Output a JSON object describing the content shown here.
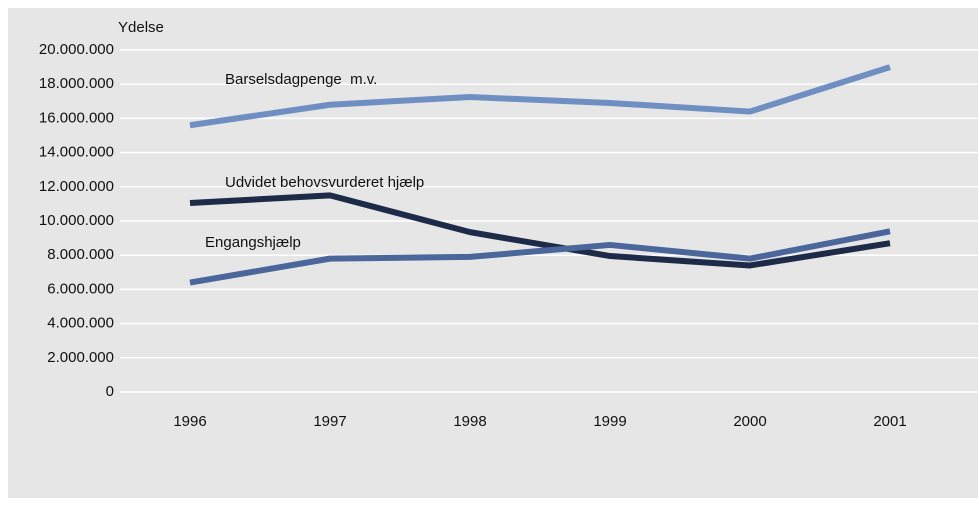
{
  "chart_data": {
    "type": "line",
    "y_label": "Ydelse",
    "categories": [
      "1996",
      "1997",
      "1998",
      "1999",
      "2000",
      "2001"
    ],
    "series": [
      {
        "name": "Barselsdagpenge  m.v.",
        "color": "#6f8fc2",
        "values": [
          15600000,
          16800000,
          17250000,
          16900000,
          16400000,
          19000000
        ]
      },
      {
        "name": "Udvidet behovsvurderet hjælp",
        "color": "#1e2b48",
        "values": [
          11050000,
          11500000,
          9350000,
          7950000,
          7400000,
          8700000
        ]
      },
      {
        "name": "Engangshjælp",
        "color": "#4a669a",
        "values": [
          6400000,
          7800000,
          7900000,
          8600000,
          7800000,
          9400000
        ]
      }
    ],
    "ylim": [
      0,
      20000000
    ],
    "yticks": [
      0,
      {
        "value": 2000000,
        "label": "2.000.000"
      },
      {
        "value": 4000000,
        "label": "4.000.000"
      },
      {
        "value": 6000000,
        "label": "6.000.000"
      },
      {
        "value": 8000000,
        "label": "8.000.000"
      },
      {
        "value": 10000000,
        "label": "10.000.000"
      },
      {
        "value": 12000000,
        "label": "12.000.000"
      },
      {
        "value": 14000000,
        "label": "14.000.000"
      },
      {
        "value": 16000000,
        "label": "16.000.000"
      },
      {
        "value": 18000000,
        "label": "18.000.000"
      },
      {
        "value": 20000000,
        "label": "20.000.000"
      }
    ],
    "grid": true
  }
}
